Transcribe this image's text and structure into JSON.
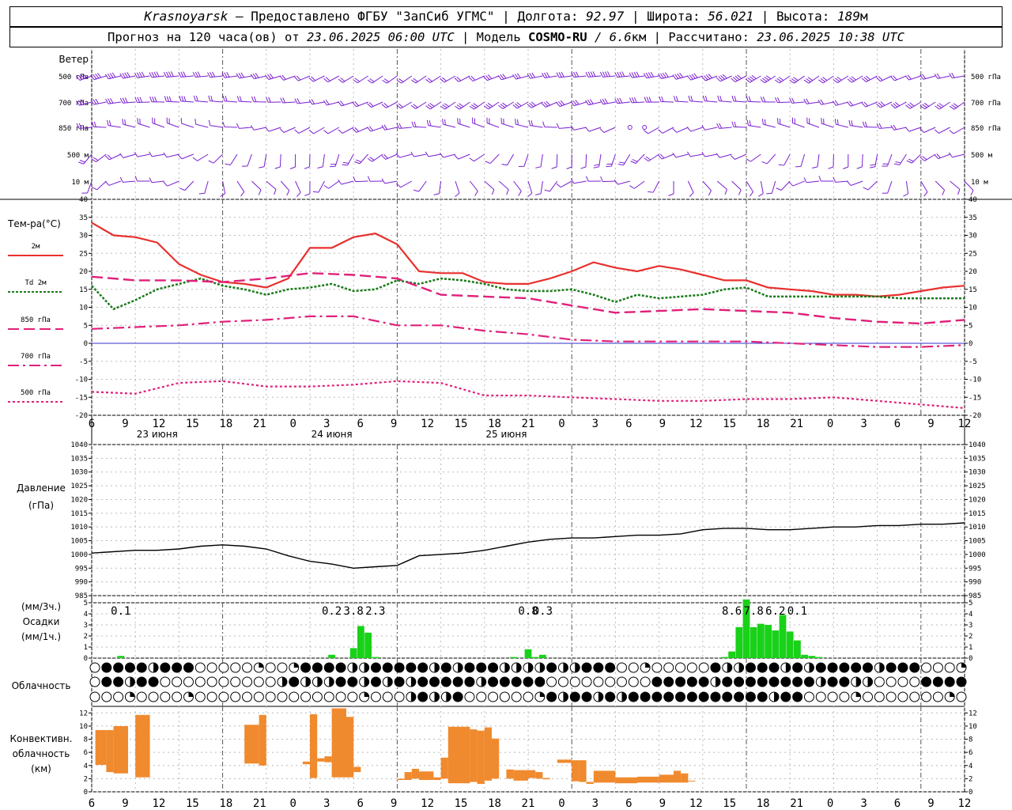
{
  "header": {
    "city": "Krasnoyarsk",
    "dash": " — ",
    "provider": "Предоставлено ФГБУ \"ЗапСиб УГМС\"",
    "sep": " | ",
    "lon_label": "Долгота: ",
    "lon": "92.97",
    "lat_label": "Широта: ",
    "lat": "56.021",
    "alt_label": "Высота: ",
    "alt": "189",
    "alt_unit": "м",
    "forecast_label": "Прогноз на 120 часа(ов) от ",
    "forecast_time": "23.06.2025 06:00 UTC",
    "model_label": "Модель ",
    "model": "COSMO-RU",
    "model_res": " / 6.6",
    "model_unit": "км",
    "calc_label": "Рассчитано: ",
    "calc_time": "23.06.2025 10:38 UTC"
  },
  "wind": {
    "title": "Ветер",
    "levels": [
      "500 гПа",
      "700 гПа",
      "850 гПа",
      "500 м",
      "10  м"
    ],
    "color": "#7a1fd1"
  },
  "temp_panel": {
    "title": "Тем-ра(°С)",
    "legend": [
      "2м",
      "Td  2м",
      "850 гПа",
      "700 гПа",
      "500 гПа"
    ],
    "colors": {
      "t2m": "#e8302e",
      "td": "#1a7a1a",
      "t850": "#e0207a",
      "t700": "#e0207a",
      "t500": "#e0207a",
      "zero": "#3333cc"
    }
  },
  "pressure_panel": {
    "title1": "Давление",
    "title2": "(гПа)"
  },
  "precip_panel": {
    "title1": "(мм/3ч.)",
    "title2": "Осадки",
    "title3": "(мм/1ч.)",
    "sums": [
      "0.1",
      "0.2",
      "3.8",
      "2.3",
      "0.8",
      "0.3",
      "8.6",
      "7.8",
      "6.2",
      "0.1"
    ],
    "color": "#19d119"
  },
  "cloud_panel": {
    "title": "Облачность"
  },
  "conv_panel": {
    "title1": "Конвективн.",
    "title2": "облачность",
    "title3": "(км)",
    "color": "#f08a2e"
  },
  "x_axis": {
    "hour_labels": [
      "6",
      "9",
      "12",
      "15",
      "18",
      "21",
      "0",
      "3",
      "6",
      "9",
      "12",
      "15",
      "18",
      "21",
      "0",
      "3",
      "6",
      "9",
      "12",
      "15",
      "18",
      "21",
      "0",
      "3",
      "6",
      "9",
      "12"
    ],
    "day_labels": [
      "23 июня",
      "24 июня",
      "25 июня"
    ]
  },
  "chart_data": [
    {
      "type": "line",
      "title": "Тем-ра(°С)",
      "x_unit": "hours from 23.06.2025 06:00 UTC",
      "ylim": [
        -20,
        40
      ],
      "yticks": [
        40,
        35,
        30,
        25,
        20,
        15,
        10,
        5,
        0,
        -5,
        -10,
        -15,
        -20
      ],
      "series": [
        {
          "name": "2м",
          "x": [
            0,
            3,
            6,
            9,
            12,
            15,
            18,
            21,
            24,
            27,
            30,
            33,
            36,
            39,
            42,
            45,
            48,
            51,
            54,
            57,
            60,
            63,
            66,
            69,
            72,
            75,
            78,
            81,
            84,
            87,
            90,
            93,
            96,
            99,
            102,
            105,
            108,
            111,
            114,
            117,
            120
          ],
          "values": [
            33.5,
            30,
            29.5,
            28,
            22,
            19,
            17,
            16.5,
            15.5,
            18,
            26.5,
            26.5,
            29.5,
            30.5,
            27.5,
            20,
            19.5,
            19.5,
            17,
            16.5,
            16.5,
            18,
            20,
            22.5,
            21,
            20,
            21.5,
            20.5,
            19,
            17.5,
            17.5,
            15.5,
            15,
            14.5,
            13.5,
            13.5,
            13,
            13.5,
            14.5,
            15.5,
            16
          ]
        },
        {
          "name": "Td  2м",
          "x": [
            0,
            3,
            6,
            9,
            12,
            15,
            18,
            21,
            24,
            27,
            30,
            33,
            36,
            39,
            42,
            45,
            48,
            51,
            54,
            57,
            60,
            63,
            66,
            69,
            72,
            75,
            78,
            81,
            84,
            87,
            90,
            93,
            96,
            99,
            102,
            105,
            108,
            111,
            114,
            117,
            120
          ],
          "values": [
            16,
            9.5,
            12,
            15,
            16.5,
            18,
            16,
            15,
            13.5,
            15,
            15.5,
            16.5,
            14.5,
            15,
            17.5,
            16.5,
            18,
            17.5,
            16.5,
            15,
            14.5,
            14.5,
            15,
            13.5,
            11.5,
            13.5,
            12.5,
            13,
            13.5,
            15,
            15.5,
            13,
            13,
            13,
            13,
            13,
            13,
            12.5,
            12.5,
            12.5,
            12.5
          ]
        },
        {
          "name": "850 гПа",
          "x": [
            0,
            6,
            12,
            18,
            24,
            30,
            36,
            42,
            48,
            54,
            60,
            66,
            72,
            78,
            84,
            90,
            96,
            102,
            108,
            114,
            120
          ],
          "values": [
            18.5,
            17.5,
            17.5,
            17,
            18,
            19.5,
            19,
            18,
            13.5,
            13,
            12.5,
            10.5,
            8.5,
            9,
            9.5,
            9,
            8.5,
            7,
            6,
            5.5,
            6.5
          ]
        },
        {
          "name": "700 гПа",
          "x": [
            0,
            6,
            12,
            18,
            24,
            30,
            36,
            42,
            48,
            54,
            60,
            66,
            72,
            78,
            84,
            90,
            96,
            102,
            108,
            114,
            120
          ],
          "values": [
            4,
            4.5,
            5,
            6,
            6.5,
            7.5,
            7.5,
            5,
            5,
            3.5,
            2.5,
            1,
            0.5,
            0.5,
            0.5,
            0.5,
            0,
            -0.5,
            -1,
            -1,
            -0.5
          ]
        },
        {
          "name": "500 гПа",
          "x": [
            0,
            6,
            12,
            18,
            24,
            30,
            36,
            42,
            48,
            54,
            60,
            66,
            72,
            78,
            84,
            90,
            96,
            102,
            108,
            114,
            120
          ],
          "values": [
            -13.5,
            -14,
            -11,
            -10.5,
            -12,
            -12,
            -11.5,
            -10.5,
            -11,
            -14.5,
            -14.5,
            -15,
            -15.5,
            -16,
            -16,
            -15.5,
            -15.5,
            -15,
            -16,
            -17,
            -18
          ]
        }
      ]
    },
    {
      "type": "line",
      "title": "Давление",
      "x_unit": "hours from 23.06.2025 06:00 UTC",
      "ylim": [
        985,
        1040
      ],
      "yticks": [
        1040,
        1035,
        1030,
        1025,
        1020,
        1015,
        1010,
        1005,
        1000,
        995,
        990,
        985
      ],
      "series": [
        {
          "name": "",
          "x": [
            0,
            6,
            9,
            12,
            15,
            18,
            21,
            24,
            27,
            30,
            33,
            36,
            39,
            42,
            45,
            48,
            51,
            54,
            57,
            60,
            63,
            66,
            69,
            72,
            75,
            78,
            81,
            84,
            87,
            90,
            93,
            96,
            99,
            102,
            105,
            108,
            111,
            114,
            117,
            120
          ],
          "values": [
            1000.5,
            1001.5,
            1001.5,
            1002,
            1003,
            1003.5,
            1003,
            1002,
            999.5,
            997.5,
            996.5,
            995,
            995.5,
            996,
            999.5,
            1000,
            1000.5,
            1001.5,
            1003,
            1004.5,
            1005.5,
            1006,
            1006,
            1006.5,
            1007,
            1007,
            1007.5,
            1009,
            1009.5,
            1009.5,
            1009,
            1009,
            1009.5,
            1010,
            1010,
            1010.5,
            1010.5,
            1011,
            1011,
            1011.5
          ]
        }
      ]
    },
    {
      "type": "bar",
      "title": "Осадки",
      "x_unit": "hours from 23.06.2025 06:00 UTC",
      "ylim": [
        0,
        5
      ],
      "yticks": [
        5,
        4,
        3,
        2,
        1,
        0
      ],
      "x": [
        4,
        33,
        36,
        37,
        38,
        39,
        58,
        60,
        61,
        62,
        87,
        88,
        89,
        90,
        91,
        92,
        93,
        94,
        95,
        96,
        97,
        98,
        99,
        100
      ],
      "values": [
        0.2,
        0.3,
        0.9,
        2.9,
        2.3,
        0.1,
        0.1,
        0.8,
        0.1,
        0.3,
        0.1,
        0.6,
        2.8,
        5.3,
        2.8,
        3.1,
        3.0,
        2.5,
        3.9,
        2.4,
        1.6,
        0.3,
        0.2,
        0.1
      ],
      "labels_3h": [
        {
          "x": 4,
          "text": "0.1"
        },
        {
          "x": 33,
          "text": "0.2"
        },
        {
          "x": 36,
          "text": "3.8"
        },
        {
          "x": 39,
          "text": "2.3"
        },
        {
          "x": 60,
          "text": "0.8"
        },
        {
          "x": 62,
          "text": "0.3"
        },
        {
          "x": 88,
          "text": "8.6"
        },
        {
          "x": 91,
          "text": "7.8"
        },
        {
          "x": 94,
          "text": "6.2"
        },
        {
          "x": 97,
          "text": "0.1"
        }
      ]
    },
    {
      "type": "bar",
      "title": "Конвективн. облачность (км)",
      "x_unit": "hours from 23.06.2025 06:00 UTC",
      "ylim": [
        0,
        13
      ],
      "yticks": [
        12,
        10,
        8,
        6,
        4,
        2,
        0
      ],
      "bars": [
        {
          "x0": 0.5,
          "x1": 2,
          "base": 4.1,
          "top": 9.4
        },
        {
          "x0": 2,
          "x1": 3,
          "base": 3.0,
          "top": 9.4
        },
        {
          "x0": 3,
          "x1": 5,
          "base": 2.8,
          "top": 10.0
        },
        {
          "x0": 6,
          "x1": 8,
          "base": 2.2,
          "top": 11.7
        },
        {
          "x0": 21,
          "x1": 23,
          "base": 4.3,
          "top": 10.2
        },
        {
          "x0": 23,
          "x1": 24,
          "base": 4.0,
          "top": 11.7
        },
        {
          "x0": 29,
          "x1": 30,
          "base": 4.2,
          "top": 4.6
        },
        {
          "x0": 30,
          "x1": 31,
          "base": 2.1,
          "top": 11.8
        },
        {
          "x0": 31,
          "x1": 32,
          "base": 4.6,
          "top": 5.1
        },
        {
          "x0": 32,
          "x1": 33,
          "base": 4.5,
          "top": 5.4
        },
        {
          "x0": 33,
          "x1": 35,
          "base": 2.2,
          "top": 12.7
        },
        {
          "x0": 35,
          "x1": 36,
          "base": 2.2,
          "top": 11.4
        },
        {
          "x0": 36,
          "x1": 37,
          "base": 3.0,
          "top": 3.8
        },
        {
          "x0": 42,
          "x1": 43,
          "base": 1.8,
          "top": 2.0
        },
        {
          "x0": 43,
          "x1": 44,
          "base": 1.8,
          "top": 3.0
        },
        {
          "x0": 44,
          "x1": 45,
          "base": 2.0,
          "top": 3.5
        },
        {
          "x0": 45,
          "x1": 47,
          "base": 1.8,
          "top": 3.1
        },
        {
          "x0": 47,
          "x1": 48,
          "base": 1.8,
          "top": 2.2
        },
        {
          "x0": 48,
          "x1": 49,
          "base": 2.0,
          "top": 5.2
        },
        {
          "x0": 49,
          "x1": 52,
          "base": 1.3,
          "top": 9.9
        },
        {
          "x0": 52,
          "x1": 53,
          "base": 1.5,
          "top": 9.5
        },
        {
          "x0": 53,
          "x1": 54,
          "base": 1.2,
          "top": 9.3
        },
        {
          "x0": 54,
          "x1": 55,
          "base": 1.7,
          "top": 9.8
        },
        {
          "x0": 55,
          "x1": 56,
          "base": 2.0,
          "top": 8.1
        },
        {
          "x0": 57,
          "x1": 58,
          "base": 2.0,
          "top": 3.4
        },
        {
          "x0": 58,
          "x1": 60,
          "base": 1.7,
          "top": 3.3
        },
        {
          "x0": 60,
          "x1": 61,
          "base": 2.1,
          "top": 3.3
        },
        {
          "x0": 61,
          "x1": 62,
          "base": 2.0,
          "top": 3.0
        },
        {
          "x0": 62,
          "x1": 63,
          "base": 1.9,
          "top": 2.1
        },
        {
          "x0": 64,
          "x1": 66,
          "base": 4.4,
          "top": 4.9
        },
        {
          "x0": 66,
          "x1": 67,
          "base": 1.6,
          "top": 4.8
        },
        {
          "x0": 67,
          "x1": 68,
          "base": 1.5,
          "top": 4.8
        },
        {
          "x0": 68,
          "x1": 69,
          "base": 1.2,
          "top": 1.5
        },
        {
          "x0": 69,
          "x1": 72,
          "base": 1.4,
          "top": 3.2
        },
        {
          "x0": 72,
          "x1": 75,
          "base": 1.3,
          "top": 2.2
        },
        {
          "x0": 75,
          "x1": 78,
          "base": 1.4,
          "top": 2.3
        },
        {
          "x0": 78,
          "x1": 80,
          "base": 1.4,
          "top": 2.6
        },
        {
          "x0": 80,
          "x1": 81,
          "base": 1.4,
          "top": 3.2
        },
        {
          "x0": 81,
          "x1": 82,
          "base": 1.4,
          "top": 2.8
        },
        {
          "x0": 82,
          "x1": 83,
          "base": 1.6,
          "top": 1.7
        }
      ]
    }
  ]
}
